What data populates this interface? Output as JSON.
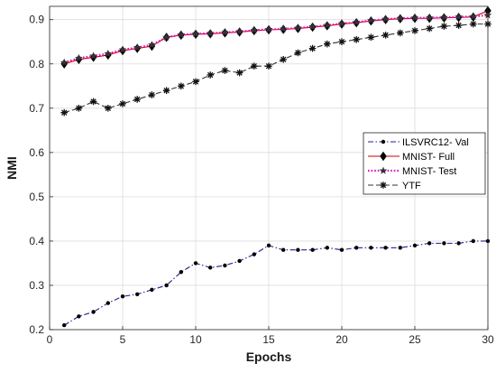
{
  "chart_data": {
    "type": "line",
    "title": "",
    "xlabel": "Epochs",
    "ylabel": "NMI",
    "xlim": [
      0,
      30
    ],
    "ylim": [
      0.2,
      0.93
    ],
    "xticks": [
      0,
      5,
      10,
      15,
      20,
      25,
      30
    ],
    "yticks": [
      0.2,
      0.3,
      0.4,
      0.5,
      0.6,
      0.7,
      0.8,
      0.9
    ],
    "grid": true,
    "legend": "center-right",
    "x": [
      1,
      2,
      3,
      4,
      5,
      6,
      7,
      8,
      9,
      10,
      11,
      12,
      13,
      14,
      15,
      16,
      17,
      18,
      19,
      20,
      21,
      22,
      23,
      24,
      25,
      26,
      27,
      28,
      29,
      30
    ],
    "series": [
      {
        "name": "ILSVRC12- Val",
        "color": "#1f1f8f",
        "dash": "dashdot",
        "marker": "dot",
        "values": [
          0.21,
          0.23,
          0.24,
          0.26,
          0.275,
          0.28,
          0.29,
          0.3,
          0.33,
          0.35,
          0.34,
          0.345,
          0.355,
          0.37,
          0.39,
          0.38,
          0.38,
          0.38,
          0.385,
          0.38,
          0.385,
          0.385,
          0.385,
          0.385,
          0.39,
          0.395,
          0.395,
          0.395,
          0.4,
          0.4
        ]
      },
      {
        "name": "MNIST- Full",
        "color": "#cc0000",
        "dash": "solid",
        "marker": "diamond",
        "values": [
          0.8,
          0.81,
          0.815,
          0.82,
          0.83,
          0.835,
          0.84,
          0.86,
          0.865,
          0.867,
          0.868,
          0.87,
          0.872,
          0.875,
          0.877,
          0.878,
          0.88,
          0.883,
          0.886,
          0.89,
          0.893,
          0.897,
          0.9,
          0.902,
          0.903,
          0.903,
          0.904,
          0.905,
          0.906,
          0.92
        ]
      },
      {
        "name": "MNIST- Test",
        "color": "#e010c8",
        "dash": "dotted",
        "marker": "star",
        "values": [
          0.803,
          0.813,
          0.818,
          0.823,
          0.832,
          0.837,
          0.843,
          0.86,
          0.866,
          0.868,
          0.869,
          0.871,
          0.873,
          0.876,
          0.878,
          0.879,
          0.881,
          0.884,
          0.887,
          0.891,
          0.894,
          0.898,
          0.901,
          0.903,
          0.904,
          0.904,
          0.905,
          0.906,
          0.907,
          0.91
        ]
      },
      {
        "name": "YTF",
        "color": "#333333",
        "dash": "dashed",
        "marker": "asterisk",
        "values": [
          0.69,
          0.7,
          0.715,
          0.7,
          0.71,
          0.72,
          0.73,
          0.74,
          0.75,
          0.76,
          0.775,
          0.785,
          0.78,
          0.795,
          0.795,
          0.81,
          0.825,
          0.835,
          0.845,
          0.85,
          0.855,
          0.86,
          0.865,
          0.87,
          0.875,
          0.88,
          0.885,
          0.887,
          0.89,
          0.89
        ]
      }
    ]
  }
}
